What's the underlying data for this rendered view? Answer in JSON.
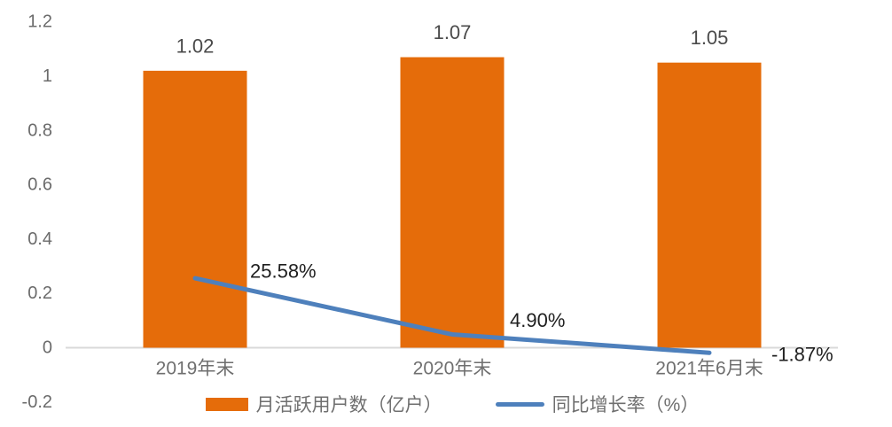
{
  "chart_data": {
    "type": "bar",
    "combo": "bar+line",
    "title": "",
    "xlabel": "",
    "ylabel": "",
    "categories": [
      "2019年末",
      "2020年末",
      "2021年6月末"
    ],
    "series": [
      {
        "name": "月活跃用户数（亿户）",
        "type": "bar",
        "values": [
          1.02,
          1.07,
          1.05
        ],
        "labels": [
          "1.02",
          "1.07",
          "1.05"
        ],
        "color": "#E56C0A"
      },
      {
        "name": "同比增长率（%）",
        "type": "line",
        "values": [
          0.2558,
          0.049,
          -0.0187
        ],
        "labels": [
          "25.58%",
          "4.90%",
          "-1.87%"
        ],
        "color": "#4E80BC"
      }
    ],
    "y_axis": {
      "min": -0.2,
      "max": 1.2,
      "step": 0.2,
      "ticks": [
        {
          "value": 1.2,
          "label": "1.2"
        },
        {
          "value": 1.0,
          "label": "1"
        },
        {
          "value": 0.8,
          "label": "0.8"
        },
        {
          "value": 0.6,
          "label": "0.6"
        },
        {
          "value": 0.4,
          "label": "0.4"
        },
        {
          "value": 0.2,
          "label": "0.2"
        },
        {
          "value": 0.0,
          "label": "0"
        },
        {
          "value": -0.2,
          "label": "-0.2"
        }
      ]
    },
    "grid": false,
    "legend_position": "bottom",
    "colors": {
      "axis_line": "#D9D9D9",
      "tick_text": "#6b6b6b",
      "bar_label_text": "#4a4a4a",
      "line_label_text": "#1f1f1f",
      "x_label_text": "#6f6f6f",
      "background": "#ffffff"
    }
  }
}
